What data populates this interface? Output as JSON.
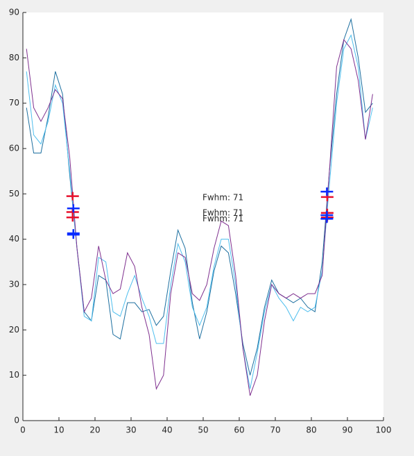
{
  "chart_data": {
    "type": "line",
    "x": [
      1,
      3,
      5,
      7,
      9,
      11,
      13,
      15,
      17,
      19,
      21,
      23,
      25,
      27,
      29,
      31,
      33,
      35,
      37,
      39,
      41,
      43,
      45,
      47,
      49,
      51,
      53,
      55,
      57,
      59,
      61,
      63,
      65,
      67,
      69,
      71,
      73,
      75,
      77,
      79,
      81,
      83,
      85,
      87,
      89,
      91,
      93,
      95,
      97
    ],
    "series": [
      {
        "color": "#1b6e9f",
        "values": [
          69,
          59,
          59,
          67,
          77,
          72,
          54,
          38,
          24,
          22,
          32,
          31,
          19,
          18,
          26,
          26,
          24,
          24.5,
          21,
          23,
          33,
          42,
          38,
          26,
          18,
          24,
          33,
          38.5,
          37,
          28,
          17,
          10,
          16,
          25,
          31,
          28,
          27,
          26,
          27,
          25,
          24,
          35,
          55,
          72,
          84,
          88.5,
          80,
          68,
          70
        ]
      },
      {
        "color": "#4dbeee",
        "values": [
          77,
          63,
          61,
          66,
          74,
          70,
          55,
          38,
          23,
          22,
          36,
          35,
          24,
          23,
          28,
          32,
          27,
          23,
          17,
          17,
          30,
          39,
          35,
          25,
          21,
          25,
          34,
          40,
          40,
          30,
          16,
          7,
          15,
          24,
          30,
          27,
          25,
          22,
          25,
          24,
          25,
          33,
          52,
          70,
          82,
          85,
          78,
          62,
          69
        ]
      },
      {
        "color": "#7e2f8e",
        "values": [
          82,
          69,
          66,
          69,
          73,
          71,
          58,
          38,
          24,
          27,
          38.5,
          31,
          28,
          29,
          37,
          34,
          25,
          19,
          7,
          10,
          28,
          37,
          36,
          28,
          26.5,
          30,
          38,
          44,
          43,
          32,
          16,
          5.5,
          10,
          22,
          30,
          28,
          27,
          28,
          27,
          28,
          28,
          32,
          55,
          78,
          84,
          82,
          75,
          62,
          72
        ]
      }
    ],
    "marker_series": [
      {
        "color": "#e8112d",
        "x": [
          13.8,
          13.8,
          13.8,
          84.4,
          84.4,
          84.4
        ],
        "y": [
          49.5,
          46,
          44.8,
          49.3,
          45.8,
          44.8
        ]
      },
      {
        "color": "#0a2cff",
        "x": [
          14,
          14,
          14,
          84.3,
          84.3,
          84.3
        ],
        "y": [
          46.8,
          41.3,
          41,
          50.5,
          45.3,
          44.5
        ]
      }
    ],
    "annotations": [
      {
        "text": "Fwhm: 71",
        "x": 49.8,
        "y": 49.1
      },
      {
        "text": "Fwhm: 71",
        "x": 49.8,
        "y": 45.8
      },
      {
        "text": "Fwhm: 71",
        "x": 49.8,
        "y": 44.5
      }
    ],
    "xlim": [
      0,
      100
    ],
    "xticks": [
      0,
      10,
      20,
      30,
      40,
      50,
      60,
      70,
      80,
      90,
      100
    ],
    "ylim": [
      0,
      90
    ],
    "yticks": [
      0,
      10,
      20,
      30,
      40,
      50,
      60,
      70,
      80,
      90
    ]
  }
}
